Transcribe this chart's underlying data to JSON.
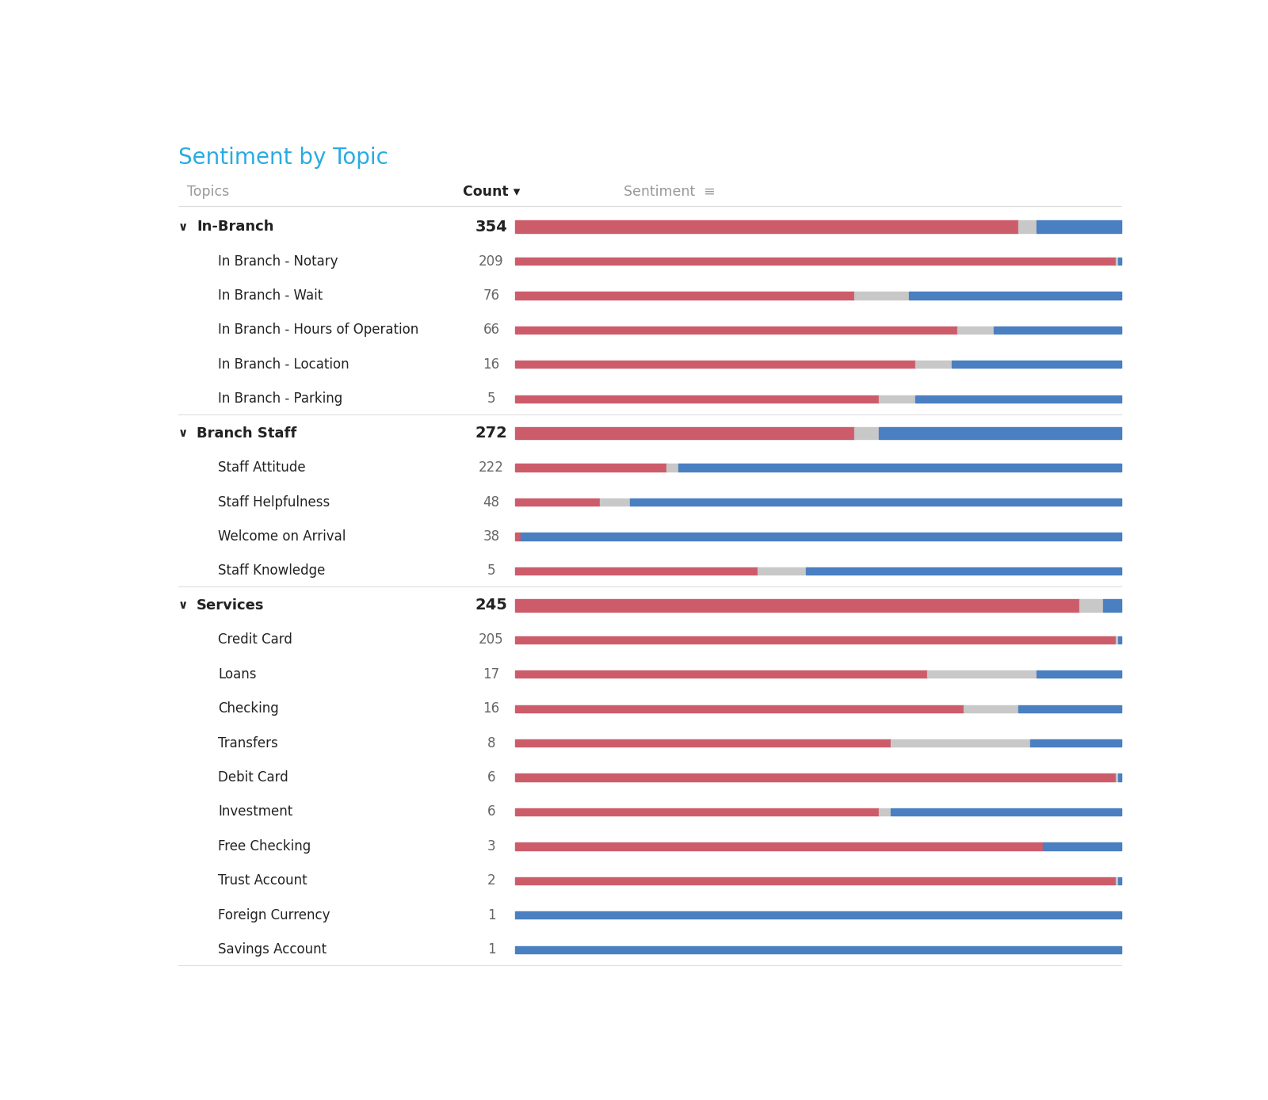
{
  "title": "Sentiment by Topic",
  "col_topics": "Topics",
  "col_count": "Count",
  "col_sentiment": "Sentiment",
  "bg_color": "#ffffff",
  "title_color": "#29abe2",
  "header_color": "#999999",
  "count_bold_color": "#222222",
  "count_normal_color": "#666666",
  "separator_color": "#dddddd",
  "red_color": "#cd5c6a",
  "blue_color": "#4a7fc1",
  "gray_color": "#c8c8c8",
  "rows": [
    {
      "label": "In-Branch",
      "count": 354,
      "is_group": true,
      "indent": false,
      "red": 0.83,
      "gray": 0.03,
      "blue": 0.14
    },
    {
      "label": "In Branch - Notary",
      "count": 209,
      "is_group": false,
      "indent": true,
      "red": 0.99,
      "gray": 0.005,
      "blue": 0.005
    },
    {
      "label": "In Branch - Wait",
      "count": 76,
      "is_group": false,
      "indent": true,
      "red": 0.56,
      "gray": 0.09,
      "blue": 0.35
    },
    {
      "label": "In Branch - Hours of Operation",
      "count": 66,
      "is_group": false,
      "indent": true,
      "red": 0.73,
      "gray": 0.06,
      "blue": 0.21
    },
    {
      "label": "In Branch - Location",
      "count": 16,
      "is_group": false,
      "indent": true,
      "red": 0.66,
      "gray": 0.06,
      "blue": 0.28
    },
    {
      "label": "In Branch - Parking",
      "count": 5,
      "is_group": false,
      "indent": true,
      "red": 0.6,
      "gray": 0.06,
      "blue": 0.34
    },
    {
      "label": "Branch Staff",
      "count": 272,
      "is_group": true,
      "indent": false,
      "red": 0.56,
      "gray": 0.04,
      "blue": 0.4
    },
    {
      "label": "Staff Attitude",
      "count": 222,
      "is_group": false,
      "indent": true,
      "red": 0.25,
      "gray": 0.02,
      "blue": 0.73
    },
    {
      "label": "Staff Helpfulness",
      "count": 48,
      "is_group": false,
      "indent": true,
      "red": 0.14,
      "gray": 0.05,
      "blue": 0.81
    },
    {
      "label": "Welcome on Arrival",
      "count": 38,
      "is_group": false,
      "indent": true,
      "red": 0.01,
      "gray": 0.0,
      "blue": 0.99
    },
    {
      "label": "Staff Knowledge",
      "count": 5,
      "is_group": false,
      "indent": true,
      "red": 0.4,
      "gray": 0.08,
      "blue": 0.52
    },
    {
      "label": "Services",
      "count": 245,
      "is_group": true,
      "indent": false,
      "red": 0.93,
      "gray": 0.04,
      "blue": 0.03
    },
    {
      "label": "Credit Card",
      "count": 205,
      "is_group": false,
      "indent": true,
      "red": 0.99,
      "gray": 0.005,
      "blue": 0.005
    },
    {
      "label": "Loans",
      "count": 17,
      "is_group": false,
      "indent": true,
      "red": 0.68,
      "gray": 0.18,
      "blue": 0.14
    },
    {
      "label": "Checking",
      "count": 16,
      "is_group": false,
      "indent": true,
      "red": 0.74,
      "gray": 0.09,
      "blue": 0.17
    },
    {
      "label": "Transfers",
      "count": 8,
      "is_group": false,
      "indent": true,
      "red": 0.62,
      "gray": 0.23,
      "blue": 0.15
    },
    {
      "label": "Debit Card",
      "count": 6,
      "is_group": false,
      "indent": true,
      "red": 0.99,
      "gray": 0.005,
      "blue": 0.005
    },
    {
      "label": "Investment",
      "count": 6,
      "is_group": false,
      "indent": true,
      "red": 0.6,
      "gray": 0.02,
      "blue": 0.38
    },
    {
      "label": "Free Checking",
      "count": 3,
      "is_group": false,
      "indent": true,
      "red": 0.87,
      "gray": 0.0,
      "blue": 0.13
    },
    {
      "label": "Trust Account",
      "count": 2,
      "is_group": false,
      "indent": true,
      "red": 0.99,
      "gray": 0.005,
      "blue": 0.005
    },
    {
      "label": "Foreign Currency",
      "count": 1,
      "is_group": false,
      "indent": true,
      "red": 0.0,
      "gray": 0.0,
      "blue": 1.0
    },
    {
      "label": "Savings Account",
      "count": 1,
      "is_group": false,
      "indent": true,
      "red": 0.0,
      "gray": 0.0,
      "blue": 1.0
    }
  ]
}
